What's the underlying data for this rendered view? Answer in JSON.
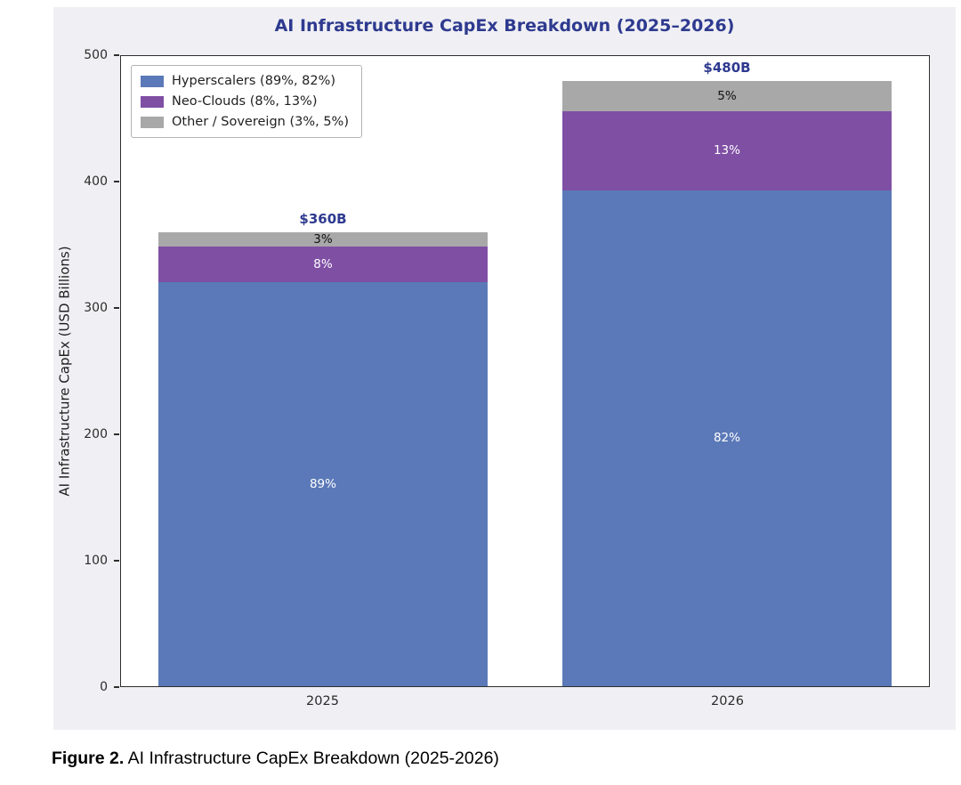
{
  "figure": {
    "caption_prefix": "Figure 2.",
    "caption_text": " AI Infrastructure CapEx Breakdown (2025-2026)"
  },
  "chart_data": {
    "type": "bar",
    "stacked": true,
    "title": "AI Infrastructure CapEx Breakdown (2025–2026)",
    "ylabel": "AI Infrastructure CapEx (USD Billions)",
    "ylim": [
      0,
      500
    ],
    "yticks": [
      0,
      100,
      200,
      300,
      400,
      500
    ],
    "grid": false,
    "legend_position": "upper left",
    "categories": [
      "2025",
      "2026"
    ],
    "totals": [
      360,
      480
    ],
    "total_labels": [
      "$360B",
      "$480B"
    ],
    "series": [
      {
        "name": "Hyperscalers (89%, 82%)",
        "color": "#5b79b8",
        "values": [
          320.4,
          393.6
        ],
        "labels": [
          "89%",
          "82%"
        ],
        "label_color": "#ffffff"
      },
      {
        "name": "Neo-Clouds (8%, 13%)",
        "color": "#7f4fa4",
        "values": [
          28.8,
          62.4
        ],
        "labels": [
          "8%",
          "13%"
        ],
        "label_color": "#ffffff"
      },
      {
        "name": "Other / Sovereign (3%, 5%)",
        "color": "#a8a8a8",
        "values": [
          10.8,
          24.0
        ],
        "labels": [
          "3%",
          "5%"
        ],
        "label_color": "#111111"
      }
    ],
    "colors": {
      "title": "#2e3a8f",
      "total_label": "#2e3a8f",
      "figure_bg": "#f0f0f4",
      "plot_bg": "#ffffff",
      "frame": "#2e2e2e",
      "tick_text": "#2b2b2b"
    }
  }
}
